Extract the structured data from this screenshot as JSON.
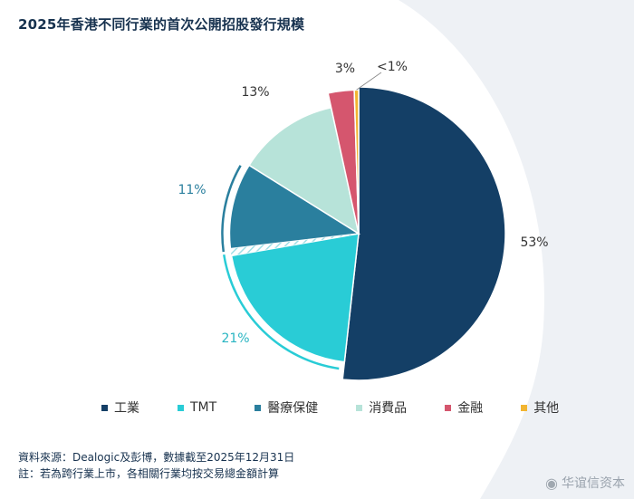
{
  "title": "2025年香港不同行業的首次公開招股發行規模",
  "chart_data": {
    "type": "pie",
    "title": "2025年香港不同行業的首次公開招股發行規模",
    "categories": [
      "工業",
      "TMT",
      "醫療保健",
      "消費品",
      "金融",
      "其他"
    ],
    "values": [
      53,
      21,
      11,
      13,
      3,
      0.5
    ],
    "data_labels": [
      "53%",
      "21%",
      "11%",
      "13%",
      "3%",
      "<1%"
    ],
    "colors": [
      "#143f66",
      "#29ccd6",
      "#2a7f9e",
      "#b7e3d9",
      "#d5566e",
      "#f2b531"
    ],
    "legend_position": "bottom"
  },
  "notes": {
    "source": "資料來源：Dealogic及彭博，數據截至2025年12月31日",
    "note": "註：若為跨行業上市，各相關行業均按交易總金額計算"
  },
  "watermark": {
    "text": "华谊信资本",
    "icon": "weibo-icon"
  }
}
